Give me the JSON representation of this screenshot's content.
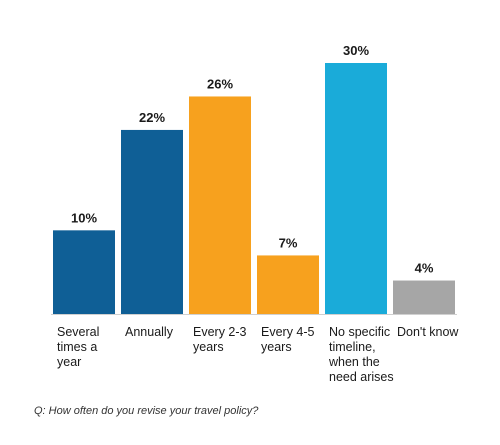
{
  "chart_data": {
    "type": "bar",
    "categories": [
      [
        "Several",
        "times a",
        "year"
      ],
      [
        "Annually"
      ],
      [
        "Every 2-3",
        "years"
      ],
      [
        "Every 4-5",
        "years"
      ],
      [
        "No specific",
        "timeline,",
        "when the",
        "need arises"
      ],
      [
        "Don't know"
      ]
    ],
    "values": [
      10,
      22,
      26,
      7,
      30,
      4
    ],
    "value_labels": [
      "10%",
      "22%",
      "26%",
      "7%",
      "30%",
      "4%"
    ],
    "colors": [
      "#0f5f96",
      "#0f5f96",
      "#f7a11e",
      "#f7a11e",
      "#1aabd9",
      "#a6a6a6"
    ],
    "ylim": [
      0,
      30
    ],
    "grid": false,
    "legend": "none"
  },
  "footer": {
    "question": "Q: How often do you revise your travel policy?"
  }
}
